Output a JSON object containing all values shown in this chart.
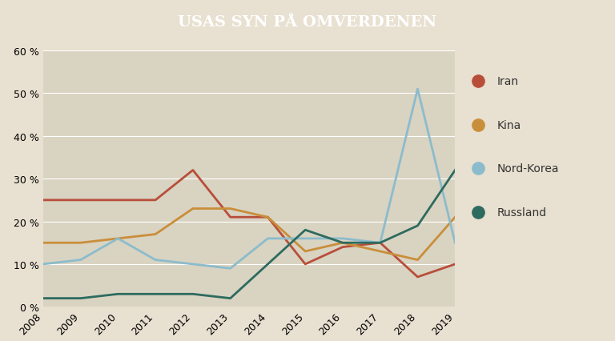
{
  "title": "USAS SYN PÅ OMVERDENEN",
  "years": [
    2008,
    2009,
    2010,
    2011,
    2012,
    2013,
    2014,
    2015,
    2016,
    2017,
    2018,
    2019
  ],
  "iran": [
    25,
    25,
    25,
    25,
    32,
    21,
    21,
    10,
    14,
    15,
    7,
    10
  ],
  "kina": [
    15,
    15,
    16,
    17,
    23,
    23,
    21,
    13,
    15,
    13,
    11,
    21
  ],
  "nord_korea": [
    10,
    11,
    16,
    11,
    10,
    9,
    16,
    16,
    16,
    15,
    51,
    15
  ],
  "russland": [
    2,
    2,
    3,
    3,
    3,
    2,
    10,
    18,
    15,
    15,
    19,
    32
  ],
  "colors": {
    "iran": "#b84e3a",
    "kina": "#c98e3a",
    "nord_korea": "#8bbccc",
    "russland": "#2d6b5e"
  },
  "legend_labels": [
    "Iran",
    "Kina",
    "Nord-Korea",
    "Russland"
  ],
  "legend_keys": [
    "iran",
    "kina",
    "nord_korea",
    "russland"
  ],
  "ylim": [
    0,
    60
  ],
  "yticks": [
    0,
    10,
    20,
    30,
    40,
    50,
    60
  ],
  "bg_color": "#d9d3c2",
  "fig_bg_color": "#e8e0d0",
  "title_bg_color": "#1a1a1a",
  "title_color": "#ffffff",
  "line_width": 2.0
}
